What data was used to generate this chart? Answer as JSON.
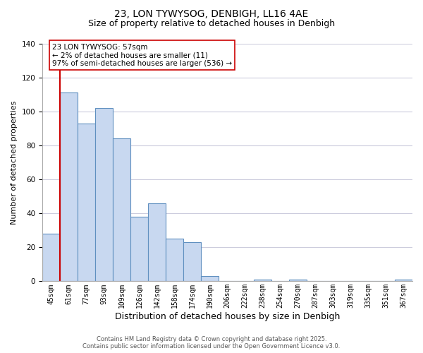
{
  "title": "23, LON TYWYSOG, DENBIGH, LL16 4AE",
  "subtitle": "Size of property relative to detached houses in Denbigh",
  "xlabel": "Distribution of detached houses by size in Denbigh",
  "ylabel": "Number of detached properties",
  "bin_labels": [
    "45sqm",
    "61sqm",
    "77sqm",
    "93sqm",
    "109sqm",
    "126sqm",
    "142sqm",
    "158sqm",
    "174sqm",
    "190sqm",
    "206sqm",
    "222sqm",
    "238sqm",
    "254sqm",
    "270sqm",
    "287sqm",
    "303sqm",
    "319sqm",
    "335sqm",
    "351sqm",
    "367sqm"
  ],
  "bar_values": [
    28,
    111,
    93,
    102,
    84,
    38,
    46,
    25,
    23,
    3,
    0,
    0,
    1,
    0,
    1,
    0,
    0,
    0,
    0,
    0,
    1
  ],
  "bar_color": "#c8d8f0",
  "bar_edge_color": "#6090c0",
  "red_line_color": "#cc0000",
  "annotation_text": "23 LON TYWYSOG: 57sqm\n← 2% of detached houses are smaller (11)\n97% of semi-detached houses are larger (536) →",
  "annotation_box_edgecolor": "#cc0000",
  "ylim": [
    0,
    140
  ],
  "yticks": [
    0,
    20,
    40,
    60,
    80,
    100,
    120,
    140
  ],
  "footer_line1": "Contains HM Land Registry data © Crown copyright and database right 2025.",
  "footer_line2": "Contains public sector information licensed under the Open Government Licence v3.0.",
  "background_color": "#ffffff",
  "grid_color": "#ccccdd",
  "title_fontsize": 10,
  "subtitle_fontsize": 9,
  "xlabel_fontsize": 9,
  "ylabel_fontsize": 8,
  "tick_fontsize": 7,
  "annotation_fontsize": 7.5,
  "footer_fontsize": 6
}
